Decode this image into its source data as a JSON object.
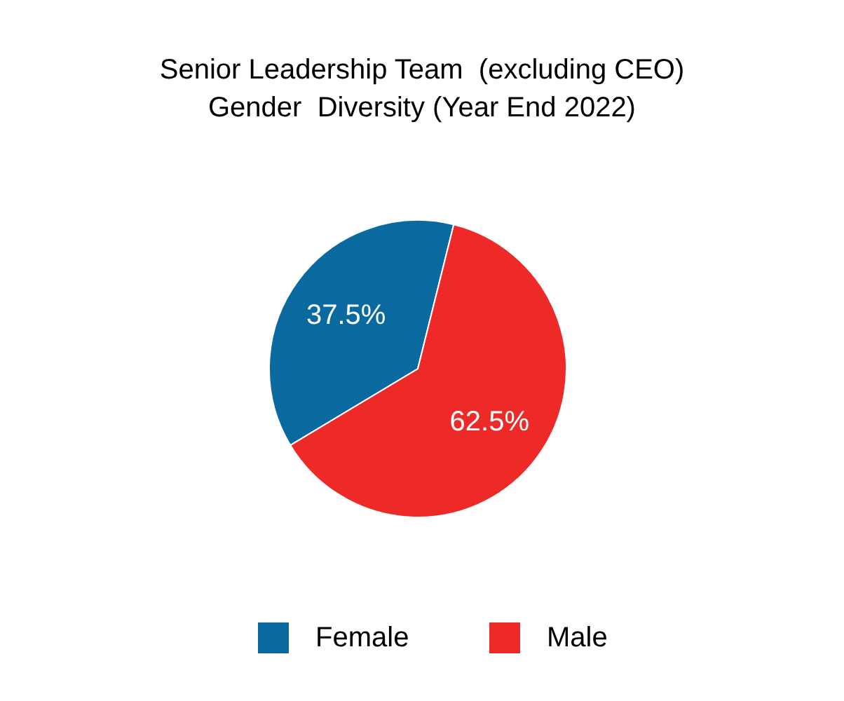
{
  "chart_data": {
    "type": "pie",
    "title": "Senior Leadership Team  (excluding CEO)\nGender  Diversity (Year End 2022)",
    "categories": [
      "Female",
      "Male"
    ],
    "values": [
      37.5,
      62.5
    ],
    "colors": [
      "#0a6aa0",
      "#ee2a29"
    ],
    "value_labels": [
      "37.5%",
      "62.5%"
    ],
    "legend": "bottom"
  }
}
